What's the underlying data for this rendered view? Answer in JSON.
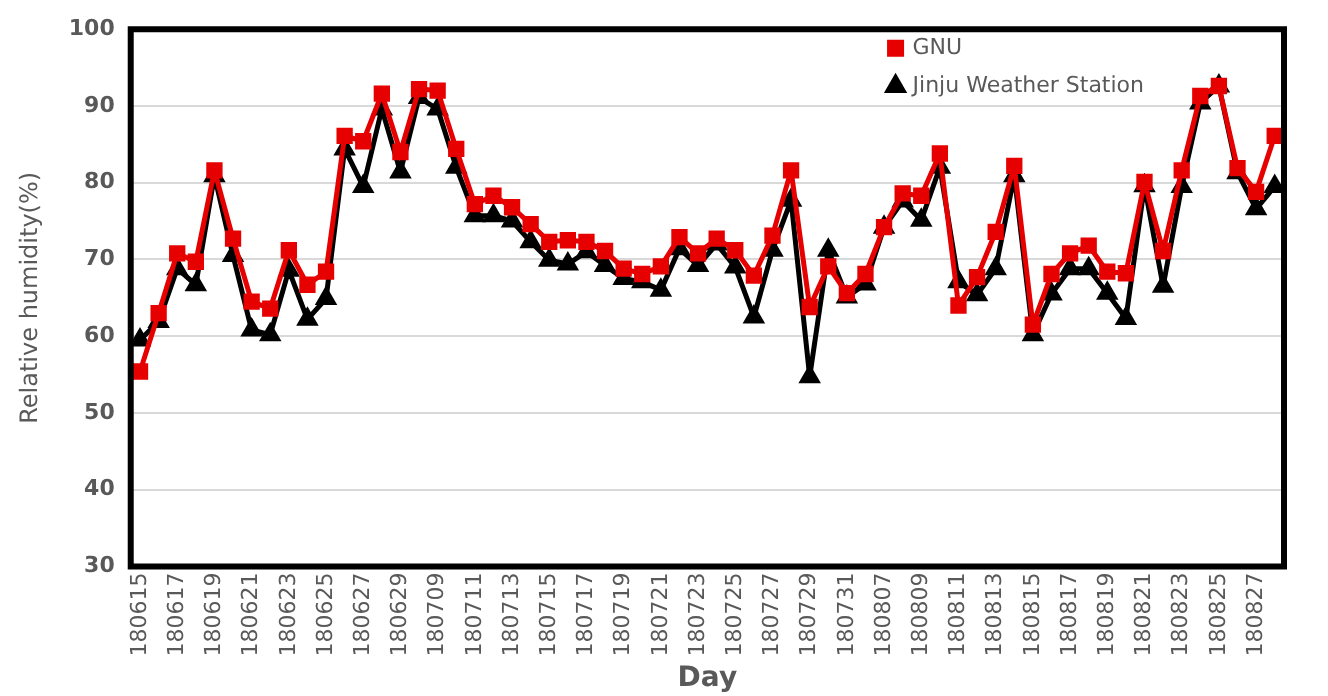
{
  "chart_data": {
    "type": "line",
    "xlabel": "Day",
    "ylabel": "Relative humidity(%)",
    "categories": [
      "180615",
      null,
      "180617",
      null,
      "180619",
      null,
      "180621",
      null,
      "180623",
      null,
      "180625",
      null,
      "180627",
      null,
      "180629",
      null,
      "180709",
      null,
      "180711",
      null,
      "180713",
      null,
      "180715",
      null,
      "180717",
      null,
      "180719",
      null,
      "180721",
      null,
      "180723",
      null,
      "180725",
      null,
      "180727",
      null,
      "180729",
      null,
      "180731",
      null,
      "180807",
      null,
      "180809",
      null,
      "180811",
      null,
      "180813",
      null,
      "180815",
      null,
      "180817",
      null,
      "180819",
      null,
      "180821",
      null,
      "180823",
      null,
      "180825",
      null,
      "180827",
      null
    ],
    "series": [
      {
        "name": "GNU",
        "color": "#e60000",
        "marker": "square",
        "values": [
          55.4,
          63.0,
          70.8,
          69.7,
          81.6,
          72.7,
          64.5,
          63.6,
          71.2,
          66.7,
          68.4,
          86.1,
          85.4,
          91.6,
          84.0,
          92.2,
          92.0,
          84.4,
          77.2,
          78.3,
          76.8,
          74.6,
          72.3,
          72.5,
          72.3,
          71.1,
          68.8,
          68.1,
          69.1,
          72.9,
          70.8,
          72.7,
          71.2,
          67.9,
          73.1,
          81.6,
          63.8,
          69.1,
          65.6,
          68.1,
          74.2,
          78.6,
          78.3,
          83.8,
          64.0,
          67.7,
          73.6,
          82.2,
          61.5,
          68.1,
          70.8,
          71.8,
          68.4,
          68.2,
          80.1,
          71.1,
          81.6,
          91.3,
          92.6,
          81.9,
          78.8,
          86.1
        ]
      },
      {
        "name": "Jinju Weather Station",
        "color": "#000000",
        "marker": "triangle",
        "values": [
          59.5,
          61.9,
          68.8,
          66.7,
          80.9,
          70.5,
          60.8,
          60.2,
          68.6,
          62.2,
          64.9,
          84.4,
          79.5,
          89.6,
          81.4,
          91.1,
          89.6,
          82.0,
          75.7,
          75.7,
          75.0,
          72.3,
          69.9,
          69.4,
          71.0,
          69.2,
          67.5,
          67.1,
          66.0,
          71.4,
          69.2,
          72.0,
          69.0,
          62.5,
          71.2,
          77.7,
          54.7,
          71.2,
          65.1,
          66.8,
          74.2,
          77.6,
          75.1,
          82.0,
          67.1,
          65.4,
          68.8,
          80.9,
          60.2,
          65.5,
          68.8,
          68.8,
          65.6,
          62.3,
          79.6,
          66.5,
          79.5,
          90.4,
          92.6,
          81.3,
          76.6,
          79.5
        ]
      }
    ],
    "ylim": [
      30,
      100
    ],
    "yticks": [
      30,
      40,
      50,
      60,
      70,
      80,
      90,
      100
    ],
    "grid": "y",
    "legend": "top right",
    "line_style": "solid"
  }
}
